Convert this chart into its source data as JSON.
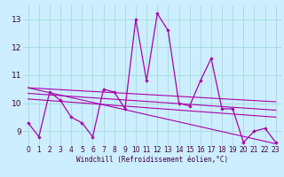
{
  "xlabel": "Windchill (Refroidissement éolien,°C)",
  "bg_color": "#cceeff",
  "grid_color": "#aadddd",
  "line_color": "#aa00aa",
  "xlim": [
    -0.5,
    23.5
  ],
  "ylim": [
    8.5,
    13.5
  ],
  "yticks": [
    9,
    10,
    11,
    12,
    13
  ],
  "xticks": [
    0,
    1,
    2,
    3,
    4,
    5,
    6,
    7,
    8,
    9,
    10,
    11,
    12,
    13,
    14,
    15,
    16,
    17,
    18,
    19,
    20,
    21,
    22,
    23
  ],
  "series1_x": [
    0,
    1,
    2,
    3,
    4,
    5,
    6,
    7,
    8,
    9,
    10,
    11,
    12,
    13,
    14,
    15,
    16,
    17,
    18,
    19,
    20,
    21,
    22,
    23
  ],
  "series1_y": [
    9.3,
    8.8,
    10.4,
    10.1,
    9.5,
    9.3,
    8.8,
    10.5,
    10.4,
    9.8,
    13.0,
    10.8,
    13.2,
    12.6,
    10.0,
    9.9,
    10.8,
    11.6,
    9.8,
    9.8,
    8.6,
    9.0,
    9.1,
    8.6
  ],
  "trend1_x": [
    0,
    23
  ],
  "trend1_y": [
    10.55,
    10.05
  ],
  "trend2_x": [
    0,
    23
  ],
  "trend2_y": [
    10.35,
    9.75
  ],
  "trend3_x": [
    0,
    23
  ],
  "trend3_y": [
    10.15,
    9.5
  ],
  "trend4_x": [
    0,
    23
  ],
  "trend4_y": [
    10.55,
    8.55
  ]
}
